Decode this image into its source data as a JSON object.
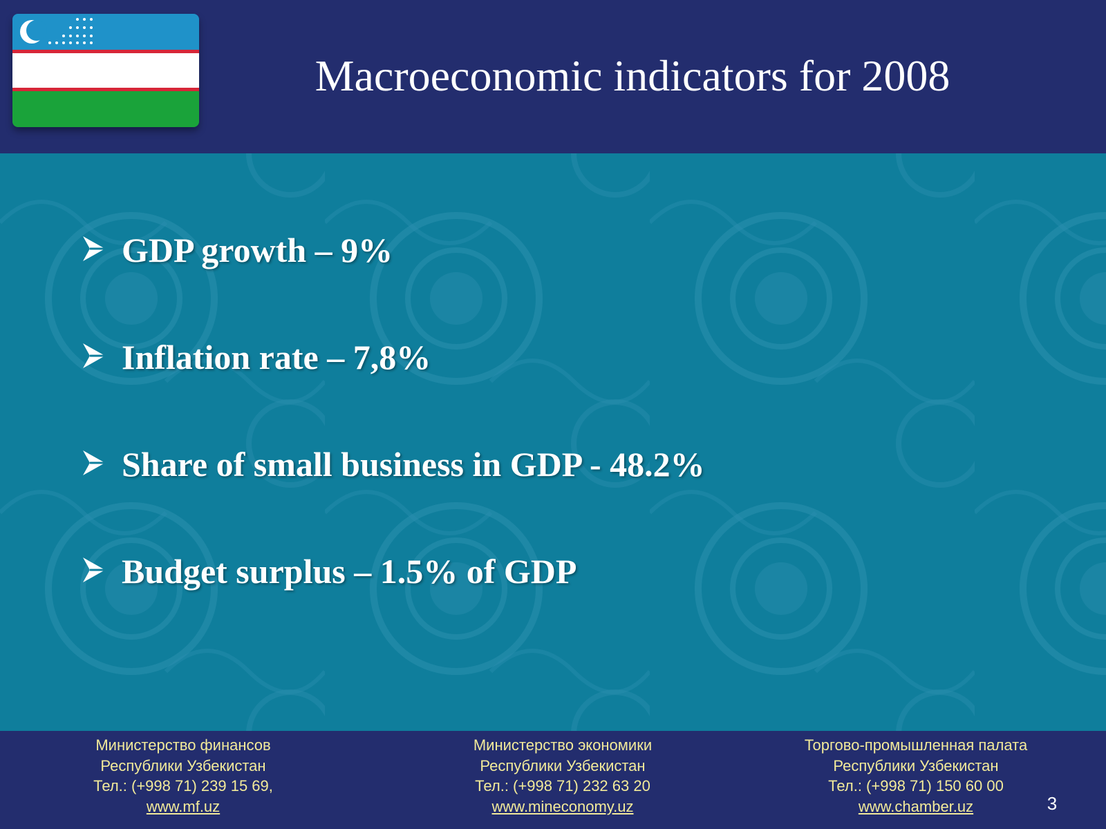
{
  "slide": {
    "title": "Macroeconomic indicators for 2008",
    "flag_icon": "uzbekistan-flag-icon",
    "bullet_icon": "arrow-bullet-icon",
    "bullets": [
      "GDP growth – 9%",
      "Inflation rate – 7,8%",
      "Share of small business in GDP -  48.2%",
      "Budget surplus – 1.5% of GDP"
    ],
    "page_number": "3"
  },
  "footer": {
    "contacts": [
      {
        "line1": "Министерство финансов",
        "line2": "Республики Узбекистан",
        "line3": "Тел.: (+998 71) 239 15 69,",
        "link": "www.mf.uz"
      },
      {
        "line1": "Министерство экономики",
        "line2": "Республики Узбекистан",
        "line3": "Тел.: (+998 71) 232 63 20",
        "link": "www.mineconomy.uz"
      },
      {
        "line1": "Торгово-промышленная палата",
        "line2": "Республики Узбекистан",
        "line3": "Тел.: (+998 71) 150 60 00",
        "link": "www.chamber.uz"
      }
    ]
  },
  "colors": {
    "header_footer_bg": "#232d6e",
    "content_bg": "#0f7e9c",
    "footer_text": "#f2ea9a",
    "text": "#ffffff"
  }
}
